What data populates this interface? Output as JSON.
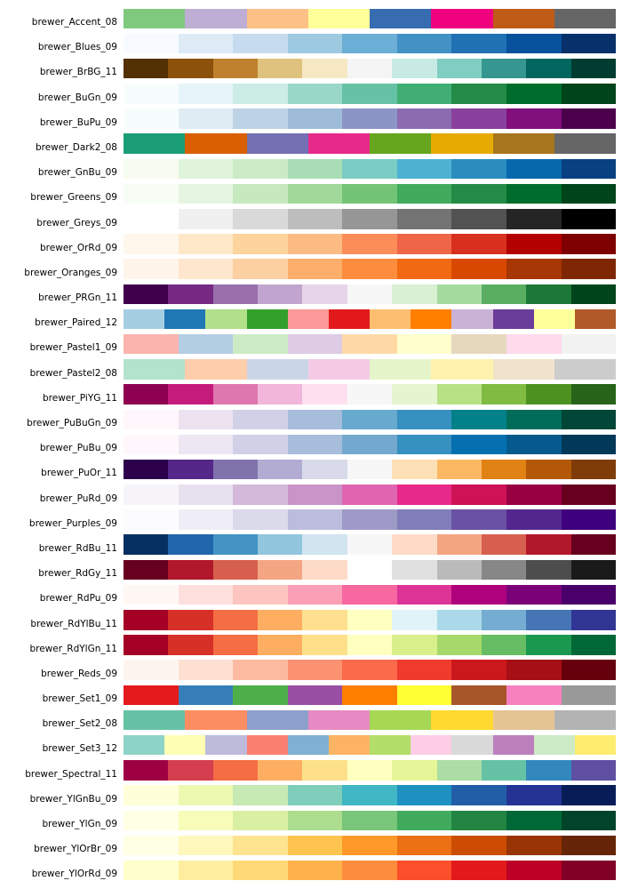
{
  "figure": {
    "background": "#ffffff",
    "label_color": "#000000"
  },
  "chart_data": {
    "type": "table",
    "subtype": "color-palette-swatch-chart",
    "title": "",
    "description": "Rows of ColorBrewer palettes; each row shows the palette name (right-aligned label) followed by its color swatches in order, left to right.",
    "palettes": [
      {
        "name": "brewer_Accent_08",
        "colors": [
          "#7fc97f",
          "#beaed4",
          "#fdc086",
          "#ffff99",
          "#386cb0",
          "#f0027f",
          "#bf5b17",
          "#666666"
        ]
      },
      {
        "name": "brewer_Blues_09",
        "colors": [
          "#f7fbff",
          "#deebf7",
          "#c6dbef",
          "#9ecae1",
          "#6baed6",
          "#4292c6",
          "#2171b5",
          "#08519c",
          "#08306b"
        ]
      },
      {
        "name": "brewer_BrBG_11",
        "colors": [
          "#543005",
          "#8c510a",
          "#bf812d",
          "#dfc27d",
          "#f6e8c3",
          "#f5f5f5",
          "#c7eae5",
          "#80cdc1",
          "#35978f",
          "#01665e",
          "#003c30"
        ]
      },
      {
        "name": "brewer_BuGn_09",
        "colors": [
          "#f7fcfd",
          "#e5f5f9",
          "#ccece6",
          "#99d8c9",
          "#66c2a4",
          "#41ae76",
          "#238b45",
          "#006d2c",
          "#00441b"
        ]
      },
      {
        "name": "brewer_BuPu_09",
        "colors": [
          "#f7fcfd",
          "#e0ecf4",
          "#bfd3e6",
          "#9ebcda",
          "#8c96c6",
          "#8c6bb1",
          "#88419d",
          "#810f7c",
          "#4d004b"
        ]
      },
      {
        "name": "brewer_Dark2_08",
        "colors": [
          "#1b9e77",
          "#d95f02",
          "#7570b3",
          "#e7298a",
          "#66a61e",
          "#e6ab02",
          "#a6761d",
          "#666666"
        ]
      },
      {
        "name": "brewer_GnBu_09",
        "colors": [
          "#f7fcf0",
          "#e0f3db",
          "#ccebc5",
          "#a8ddb5",
          "#7bccc4",
          "#4eb3d3",
          "#2b8cbe",
          "#0868ac",
          "#084081"
        ]
      },
      {
        "name": "brewer_Greens_09",
        "colors": [
          "#f7fcf5",
          "#e5f5e0",
          "#c7e9c0",
          "#a1d99b",
          "#74c476",
          "#41ab5d",
          "#238b45",
          "#006d2c",
          "#00441b"
        ]
      },
      {
        "name": "brewer_Greys_09",
        "colors": [
          "#ffffff",
          "#f0f0f0",
          "#d9d9d9",
          "#bdbdbd",
          "#969696",
          "#737373",
          "#525252",
          "#252525",
          "#000000"
        ]
      },
      {
        "name": "brewer_OrRd_09",
        "colors": [
          "#fff7ec",
          "#fee8c8",
          "#fdd49e",
          "#fdbb84",
          "#fc8d59",
          "#ef6548",
          "#d7301f",
          "#b30000",
          "#7f0000"
        ]
      },
      {
        "name": "brewer_Oranges_09",
        "colors": [
          "#fff5eb",
          "#fee6ce",
          "#fdd0a2",
          "#fdae6b",
          "#fd8d3c",
          "#f16913",
          "#d94801",
          "#a63603",
          "#7f2704"
        ]
      },
      {
        "name": "brewer_PRGn_11",
        "colors": [
          "#40004b",
          "#762a83",
          "#9970ab",
          "#c2a5cf",
          "#e7d4e8",
          "#f7f7f7",
          "#d9f0d3",
          "#a6dba0",
          "#5aae61",
          "#1b7837",
          "#00441b"
        ]
      },
      {
        "name": "brewer_Paired_12",
        "colors": [
          "#a6cee3",
          "#1f78b4",
          "#b2df8a",
          "#33a02c",
          "#fb9a99",
          "#e31a1c",
          "#fdbf6f",
          "#ff7f00",
          "#cab2d6",
          "#6a3d9a",
          "#ffff99",
          "#b15928"
        ]
      },
      {
        "name": "brewer_Pastel1_09",
        "colors": [
          "#fbb4ae",
          "#b3cde3",
          "#ccebc5",
          "#decbe4",
          "#fed9a6",
          "#ffffcc",
          "#e5d8bd",
          "#fddaec",
          "#f2f2f2"
        ]
      },
      {
        "name": "brewer_Pastel2_08",
        "colors": [
          "#b3e2cd",
          "#fdcdac",
          "#cbd5e8",
          "#f4cae4",
          "#e6f5c9",
          "#fff2ae",
          "#f1e2cc",
          "#cccccc"
        ]
      },
      {
        "name": "brewer_PiYG_11",
        "colors": [
          "#8e0152",
          "#c51b7d",
          "#de77ae",
          "#f1b6da",
          "#fde0ef",
          "#f7f7f7",
          "#e6f5d0",
          "#b8e186",
          "#7fbc41",
          "#4d9221",
          "#276419"
        ]
      },
      {
        "name": "brewer_PuBuGn_09",
        "colors": [
          "#fff7fb",
          "#ece2f0",
          "#d0d1e6",
          "#a6bddb",
          "#67a9cf",
          "#3690c0",
          "#02818a",
          "#016c59",
          "#014636"
        ]
      },
      {
        "name": "brewer_PuBu_09",
        "colors": [
          "#fff7fb",
          "#ece7f2",
          "#d0d1e6",
          "#a6bddb",
          "#74a9cf",
          "#3690c0",
          "#0570b0",
          "#045a8d",
          "#023858"
        ]
      },
      {
        "name": "brewer_PuOr_11",
        "colors": [
          "#2d004b",
          "#542788",
          "#8073ac",
          "#b2abd2",
          "#d8daeb",
          "#f7f7f7",
          "#fee0b6",
          "#fdb863",
          "#e08214",
          "#b35806",
          "#7f3b08"
        ]
      },
      {
        "name": "brewer_PuRd_09",
        "colors": [
          "#f7f4f9",
          "#e7e1ef",
          "#d4b9da",
          "#c994c7",
          "#df65b0",
          "#e7298a",
          "#ce1256",
          "#980043",
          "#67001f"
        ]
      },
      {
        "name": "brewer_Purples_09",
        "colors": [
          "#fcfbfd",
          "#efedf5",
          "#dadaeb",
          "#bcbddc",
          "#9e9ac8",
          "#807dba",
          "#6a51a3",
          "#54278f",
          "#3f007d"
        ]
      },
      {
        "name": "brewer_RdBu_11",
        "colors": [
          "#053061",
          "#2166ac",
          "#4393c3",
          "#92c5de",
          "#d1e5f0",
          "#f7f7f7",
          "#fddbc7",
          "#f4a582",
          "#d6604d",
          "#b2182b",
          "#67001f"
        ]
      },
      {
        "name": "brewer_RdGy_11",
        "colors": [
          "#67001f",
          "#b2182b",
          "#d6604d",
          "#f4a582",
          "#fddbc7",
          "#ffffff",
          "#e0e0e0",
          "#bababa",
          "#878787",
          "#4d4d4d",
          "#1a1a1a"
        ]
      },
      {
        "name": "brewer_RdPu_09",
        "colors": [
          "#fff7f3",
          "#fde0dd",
          "#fcc5c0",
          "#fa9fb5",
          "#f768a1",
          "#dd3497",
          "#ae017e",
          "#7a0177",
          "#49006a"
        ]
      },
      {
        "name": "brewer_RdYlBu_11",
        "colors": [
          "#a50026",
          "#d73027",
          "#f46d43",
          "#fdae61",
          "#fee090",
          "#ffffbf",
          "#e0f3f8",
          "#abd9e9",
          "#74add1",
          "#4575b4",
          "#313695"
        ]
      },
      {
        "name": "brewer_RdYlGn_11",
        "colors": [
          "#a50026",
          "#d73027",
          "#f46d43",
          "#fdae61",
          "#fee08b",
          "#ffffbf",
          "#d9ef8b",
          "#a6d96a",
          "#66bd63",
          "#1a9850",
          "#006837"
        ]
      },
      {
        "name": "brewer_Reds_09",
        "colors": [
          "#fff5f0",
          "#fee0d2",
          "#fcbba1",
          "#fc9272",
          "#fb6a4a",
          "#ef3b2c",
          "#cb181d",
          "#a50f15",
          "#67000d"
        ]
      },
      {
        "name": "brewer_Set1_09",
        "colors": [
          "#e41a1c",
          "#377eb8",
          "#4daf4a",
          "#984ea3",
          "#ff7f00",
          "#ffff33",
          "#a65628",
          "#f781bf",
          "#999999"
        ]
      },
      {
        "name": "brewer_Set2_08",
        "colors": [
          "#66c2a5",
          "#fc8d62",
          "#8da0cb",
          "#e78ac3",
          "#a6d854",
          "#ffd92f",
          "#e5c494",
          "#b3b3b3"
        ]
      },
      {
        "name": "brewer_Set3_12",
        "colors": [
          "#8dd3c7",
          "#ffffb3",
          "#bebada",
          "#fb8072",
          "#80b1d3",
          "#fdb462",
          "#b3de69",
          "#fccde5",
          "#d9d9d9",
          "#bc80bd",
          "#ccebc5",
          "#ffed6f"
        ]
      },
      {
        "name": "brewer_Spectral_11",
        "colors": [
          "#9e0142",
          "#d53e4f",
          "#f46d43",
          "#fdae61",
          "#fee08b",
          "#ffffbf",
          "#e6f598",
          "#abdda4",
          "#66c2a5",
          "#3288bd",
          "#5e4fa2"
        ]
      },
      {
        "name": "brewer_YlGnBu_09",
        "colors": [
          "#ffffd9",
          "#edf8b1",
          "#c7e9b4",
          "#7fcdbb",
          "#41b6c4",
          "#1d91c0",
          "#225ea8",
          "#253494",
          "#081d58"
        ]
      },
      {
        "name": "brewer_YlGn_09",
        "colors": [
          "#ffffe5",
          "#f7fcb9",
          "#d9f0a3",
          "#addd8e",
          "#78c679",
          "#41ab5d",
          "#238443",
          "#006837",
          "#004529"
        ]
      },
      {
        "name": "brewer_YlOrBr_09",
        "colors": [
          "#ffffe5",
          "#fff7bc",
          "#fee391",
          "#fec44f",
          "#fe9929",
          "#ec7014",
          "#cc4c02",
          "#993404",
          "#662506"
        ]
      },
      {
        "name": "brewer_YlOrRd_09",
        "colors": [
          "#ffffcc",
          "#ffeda0",
          "#fed976",
          "#feb24c",
          "#fd8d3c",
          "#fc4e2a",
          "#e31a1c",
          "#bd0026",
          "#800026"
        ]
      }
    ]
  }
}
